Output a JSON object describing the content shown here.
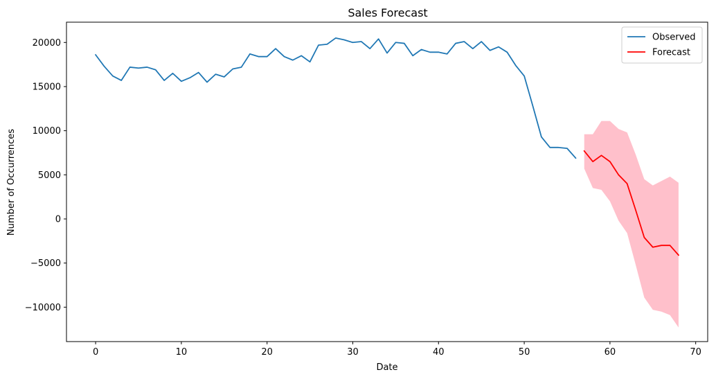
{
  "chart_data": {
    "type": "line",
    "title": "Sales Forecast",
    "xlabel": "Date",
    "ylabel": "Number of Occurrences",
    "xlim": [
      -3.4,
      71.4
    ],
    "ylim": [
      -13900,
      22300
    ],
    "xticks": [
      0,
      10,
      20,
      30,
      40,
      50,
      60,
      70
    ],
    "yticks": [
      -10000,
      -5000,
      0,
      5000,
      10000,
      15000,
      20000
    ],
    "grid": false,
    "legend_position": "top-right",
    "series": [
      {
        "name": "Observed",
        "color": "#1f77b4",
        "x": [
          0,
          1,
          2,
          3,
          4,
          5,
          6,
          7,
          8,
          9,
          10,
          11,
          12,
          13,
          14,
          15,
          16,
          17,
          18,
          19,
          20,
          21,
          22,
          23,
          24,
          25,
          26,
          27,
          28,
          29,
          30,
          31,
          32,
          33,
          34,
          35,
          36,
          37,
          38,
          39,
          40,
          41,
          42,
          43,
          44,
          45,
          46,
          47,
          48,
          49,
          50,
          51,
          52,
          53,
          54,
          55,
          56
        ],
        "values": [
          18600,
          17300,
          16200,
          15700,
          17200,
          17100,
          17200,
          16900,
          15700,
          16500,
          15600,
          16000,
          16600,
          15500,
          16400,
          16100,
          17000,
          17200,
          18700,
          18400,
          18400,
          19300,
          18400,
          18000,
          18500,
          17800,
          19700,
          19800,
          20500,
          20300,
          20000,
          20100,
          19300,
          20400,
          18800,
          20000,
          19900,
          18500,
          19200,
          18900,
          18900,
          18700,
          19900,
          20100,
          19300,
          20100,
          19100,
          19500,
          18900,
          17400,
          16200,
          12800,
          9300,
          8100,
          8100,
          8000,
          6900
        ]
      },
      {
        "name": "Forecast",
        "color": "#ff0000",
        "x": [
          57,
          58,
          59,
          60,
          61,
          62,
          63,
          64,
          65,
          66,
          67,
          68
        ],
        "values": [
          7700,
          6500,
          7200,
          6500,
          5000,
          4000,
          1000,
          -2100,
          -3200,
          -3000,
          -3000,
          -4100
        ],
        "lower": [
          5700,
          3500,
          3300,
          2000,
          -200,
          -1600,
          -5200,
          -8900,
          -10300,
          -10500,
          -10900,
          -12300
        ],
        "upper": [
          9600,
          9600,
          11100,
          11100,
          10200,
          9800,
          7300,
          4500,
          3800,
          4300,
          4800,
          4100
        ],
        "band_color": "#ffc0cb"
      }
    ]
  }
}
